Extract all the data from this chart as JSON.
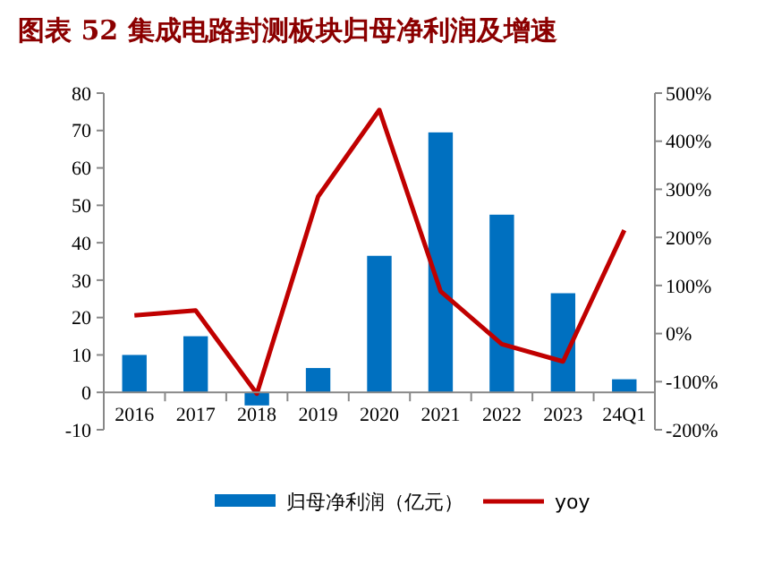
{
  "chart_data": {
    "type": "bar",
    "title": "图表 52 集成电路封测板块归母净利润及增速",
    "categories": [
      "2016",
      "2017",
      "2018",
      "2019",
      "2020",
      "2021",
      "2022",
      "2023",
      "24Q1"
    ],
    "series": [
      {
        "name": "归母净利润（亿元）",
        "color": "#0070c0",
        "values": [
          10,
          15,
          -3.5,
          6.5,
          36.5,
          69.5,
          47.5,
          26.5,
          3.5
        ]
      },
      {
        "name": "yoy",
        "type": "line",
        "axis": "y2",
        "color": "#c00000",
        "values": [
          38,
          48,
          -125,
          285,
          465,
          88,
          -22,
          -58,
          215
        ]
      }
    ],
    "ylim": [
      -10,
      80
    ],
    "yticks": [
      -10,
      0,
      10,
      20,
      30,
      40,
      50,
      60,
      70,
      80
    ],
    "y2lim": [
      -200,
      500
    ],
    "y2ticks": [
      {
        "value": -200,
        "label": "-200%"
      },
      {
        "value": -100,
        "label": "-100%"
      },
      {
        "value": 0,
        "label": "0%"
      },
      {
        "value": 100,
        "label": "100%"
      },
      {
        "value": 200,
        "label": "200%"
      },
      {
        "value": 300,
        "label": "300%"
      },
      {
        "value": 400,
        "label": "400%"
      },
      {
        "value": 500,
        "label": "500%"
      }
    ],
    "legend": "bottom",
    "grid": false,
    "marker": "none",
    "line_style": "solid"
  }
}
